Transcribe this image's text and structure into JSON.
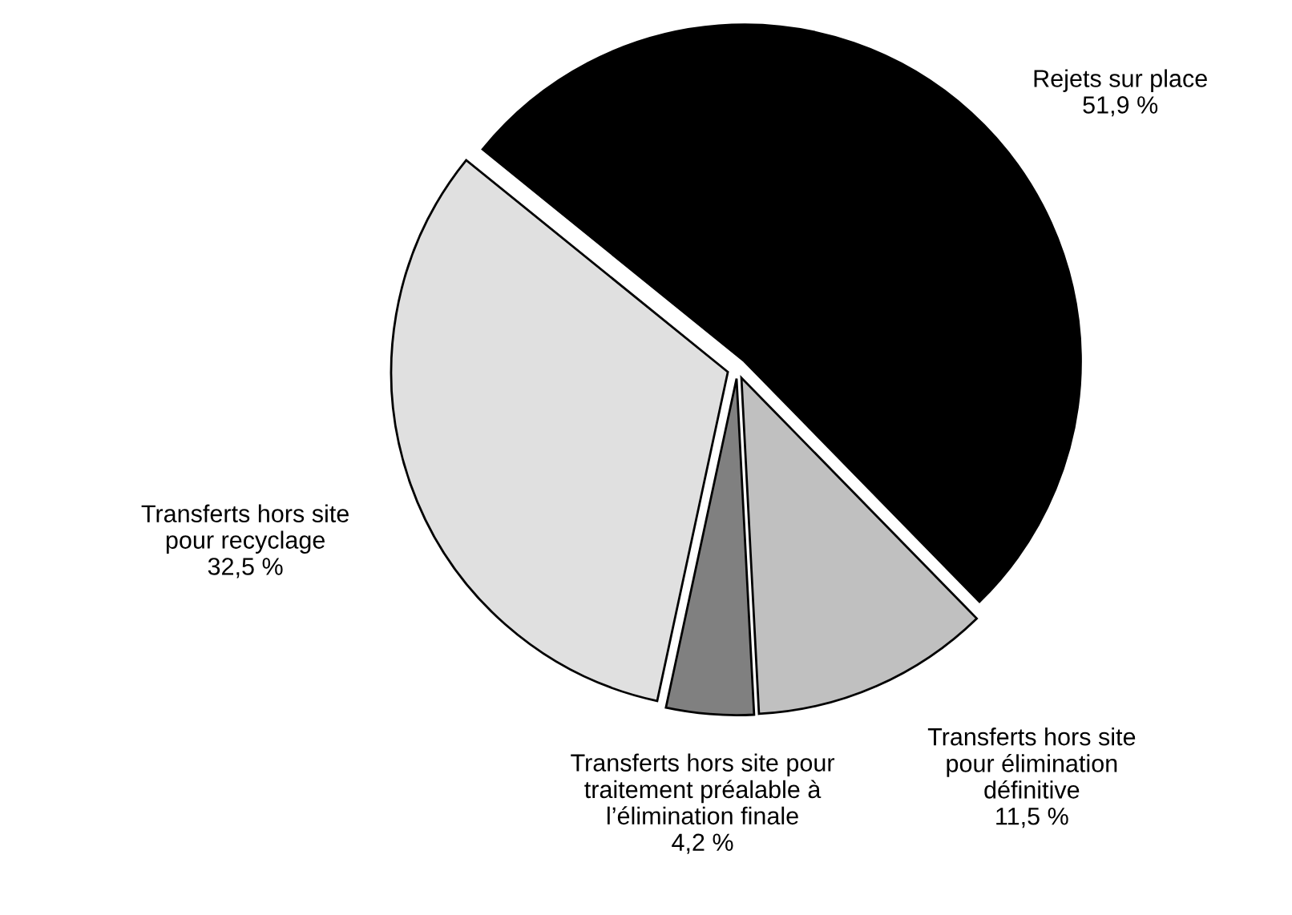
{
  "chart_data": {
    "type": "pie",
    "categories": [
      "Rejets sur place",
      "Transferts hors site\npour élimination\ndéfinitive",
      "Transferts hors site pour\ntraitement préalable à\nl’élimination finale",
      "Transferts hors site\npour recyclage"
    ],
    "values": [
      51.9,
      11.5,
      4.2,
      32.5
    ],
    "value_labels": [
      "51,9 %",
      "11,5 %",
      "4,2 %",
      "32,5 %"
    ],
    "colors": [
      "#000000",
      "#c0c0c0",
      "#808080",
      "#e0e0e0"
    ],
    "legend": false
  }
}
